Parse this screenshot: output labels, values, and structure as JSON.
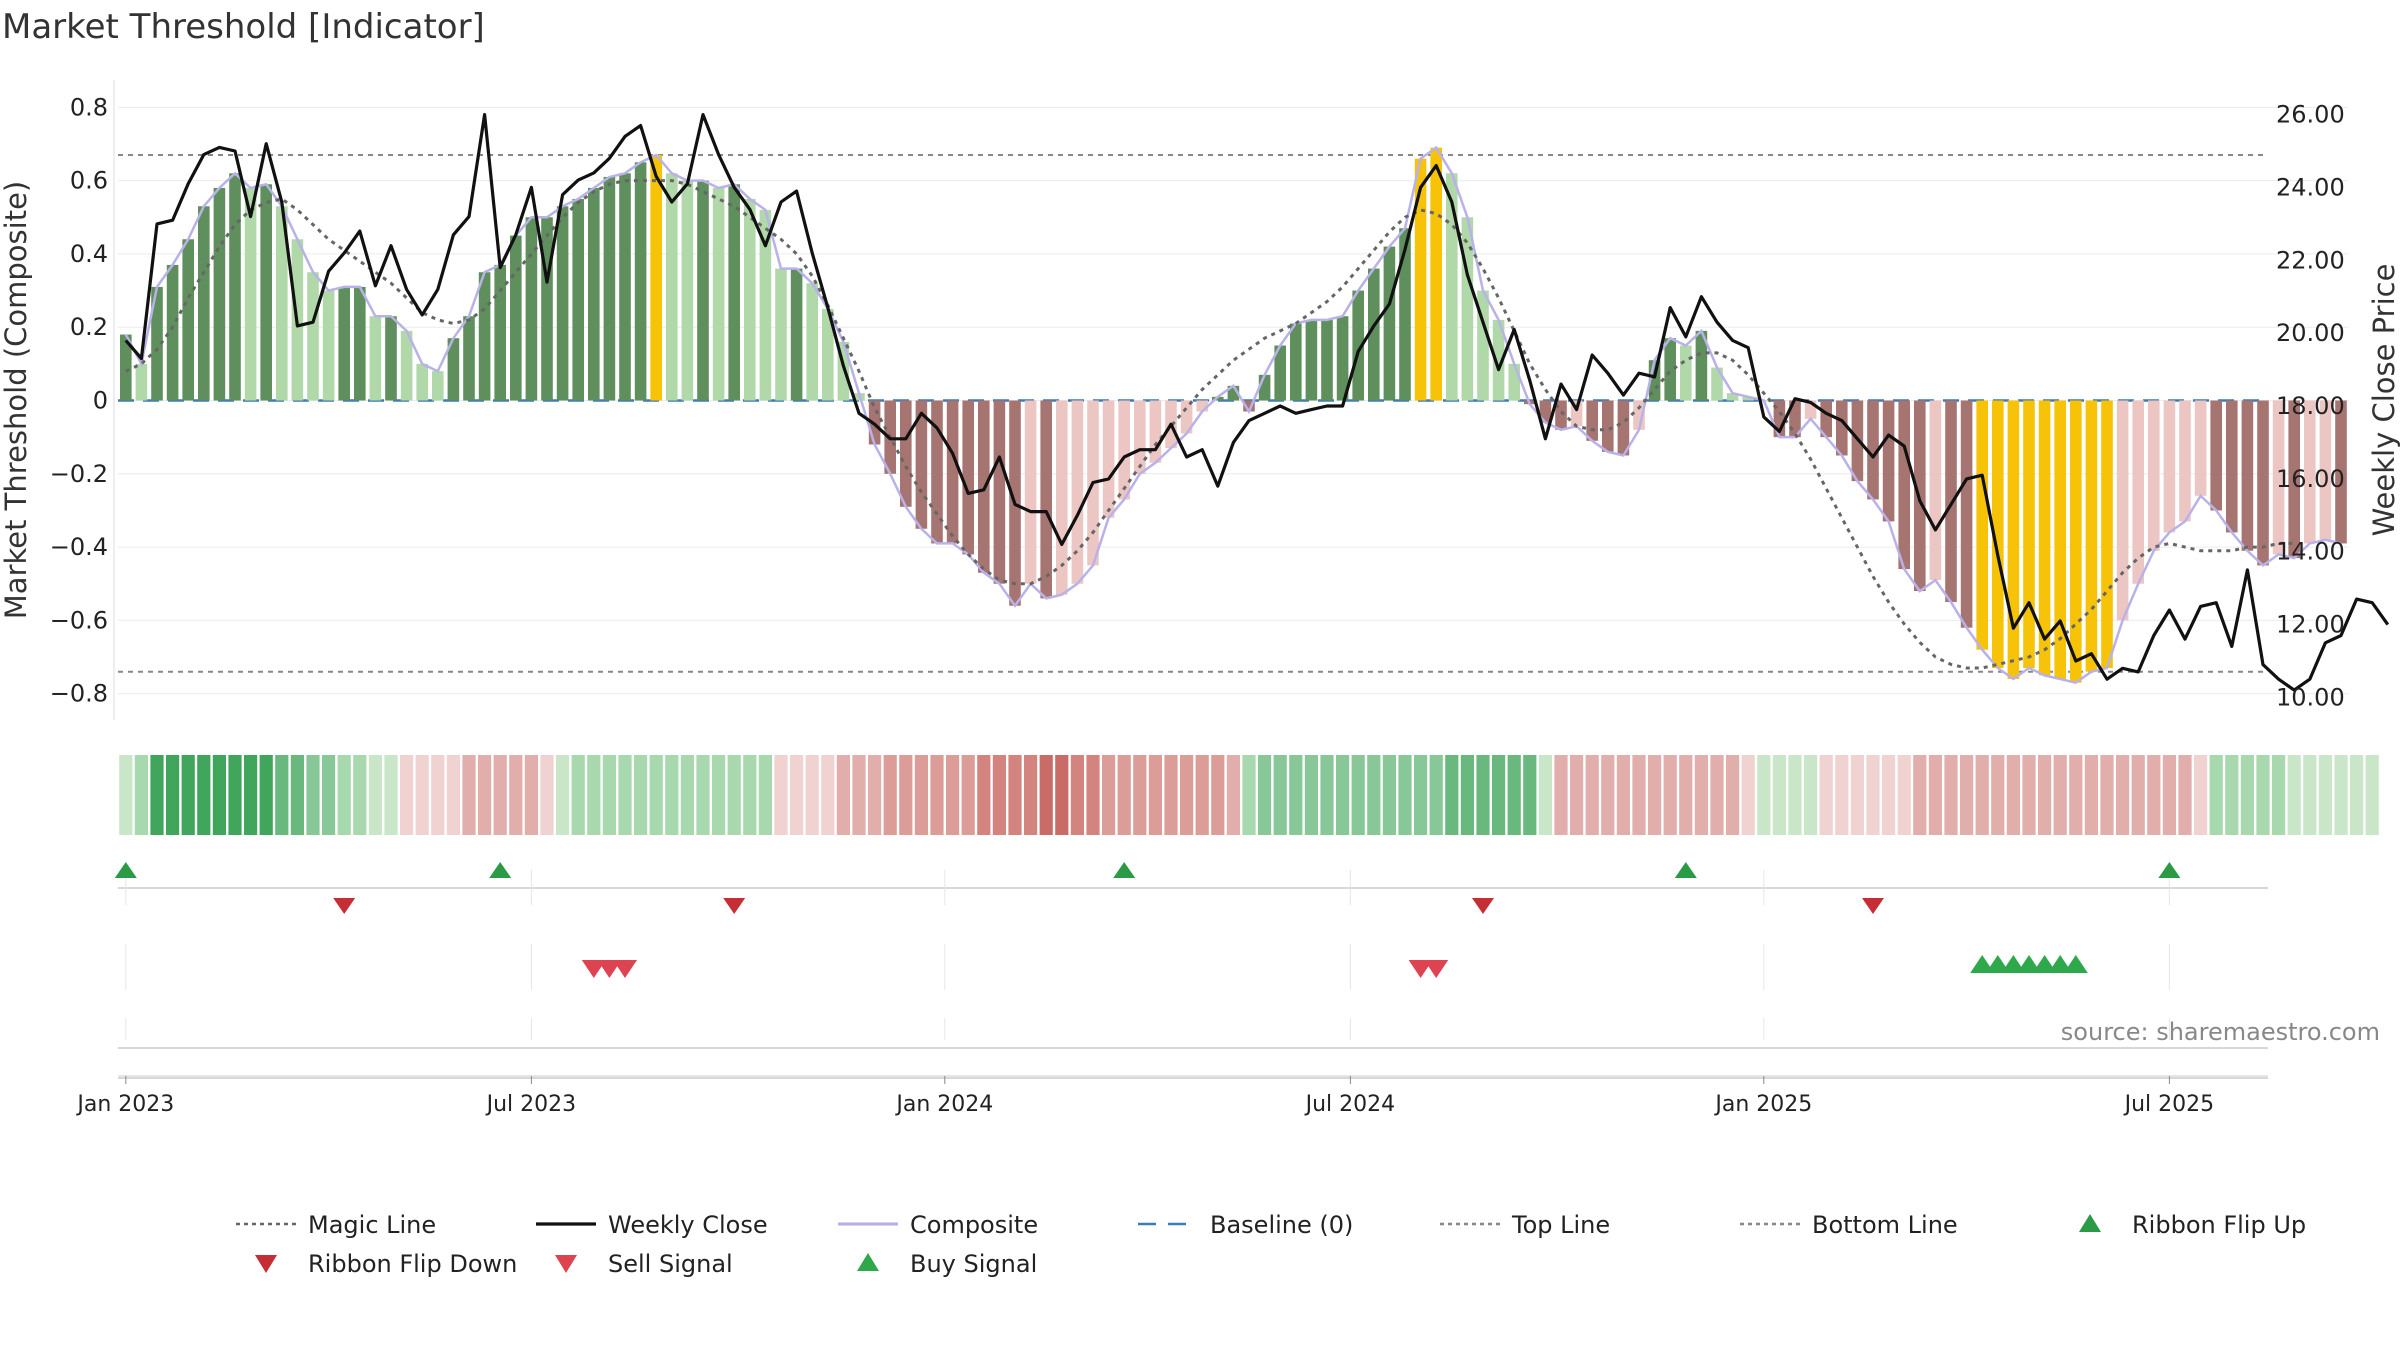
{
  "chart_data": {
    "type": "bar",
    "title": "Market Threshold [Indicator]",
    "ylabel_left": "Market Threshold (Composite)",
    "ylabel_right": "Weekly Close Price",
    "ylim_left": [
      -0.85,
      0.82
    ],
    "ylim_right": [
      9.6,
      26.4
    ],
    "yticks_left": [
      {
        "value": 0.8,
        "label": "0.8"
      },
      {
        "value": 0.6,
        "label": "0.6"
      },
      {
        "value": 0.4,
        "label": "0.4"
      },
      {
        "value": 0.2,
        "label": "0.2"
      },
      {
        "value": 0.0,
        "label": "0"
      },
      {
        "value": -0.2,
        "label": "−0.2"
      },
      {
        "value": -0.4,
        "label": "−0.4"
      },
      {
        "value": -0.6,
        "label": "−0.6"
      },
      {
        "value": -0.8,
        "label": "−0.8"
      }
    ],
    "yticks_right": [
      {
        "value": 26,
        "label": "26.00"
      },
      {
        "value": 24,
        "label": "24.00"
      },
      {
        "value": 22,
        "label": "22.00"
      },
      {
        "value": 20,
        "label": "20.00"
      },
      {
        "value": 18,
        "label": "18.00"
      },
      {
        "value": 16,
        "label": "16.00"
      },
      {
        "value": 14,
        "label": "14.00"
      },
      {
        "value": 12,
        "label": "12.00"
      },
      {
        "value": 10,
        "label": "10.00"
      }
    ],
    "xticks": [
      {
        "week": 1,
        "label": "Jan 2023"
      },
      {
        "week": 27,
        "label": "Jul 2023"
      },
      {
        "week": 53.5,
        "label": "Jan 2024"
      },
      {
        "week": 79.5,
        "label": "Jul 2024"
      },
      {
        "week": 106,
        "label": "Jan 2025"
      },
      {
        "week": 132,
        "label": "Jul 2025"
      }
    ],
    "top_line": 0.67,
    "bottom_line": -0.74,
    "baseline": 0,
    "composite": [
      0.18,
      0.1,
      0.31,
      0.37,
      0.44,
      0.53,
      0.58,
      0.62,
      0.58,
      0.59,
      0.53,
      0.44,
      0.35,
      0.3,
      0.31,
      0.31,
      0.23,
      0.23,
      0.19,
      0.1,
      0.08,
      0.17,
      0.23,
      0.35,
      0.37,
      0.45,
      0.5,
      0.5,
      0.53,
      0.55,
      0.58,
      0.61,
      0.62,
      0.65,
      0.67,
      0.62,
      0.6,
      0.6,
      0.58,
      0.59,
      0.55,
      0.52,
      0.36,
      0.36,
      0.32,
      0.25,
      0.16,
      0.02,
      -0.12,
      -0.2,
      -0.29,
      -0.35,
      -0.39,
      -0.39,
      -0.42,
      -0.47,
      -0.5,
      -0.56,
      -0.5,
      -0.54,
      -0.53,
      -0.5,
      -0.45,
      -0.32,
      -0.27,
      -0.2,
      -0.17,
      -0.13,
      -0.09,
      -0.03,
      0.01,
      0.04,
      -0.03,
      0.07,
      0.15,
      0.21,
      0.22,
      0.22,
      0.23,
      0.3,
      0.36,
      0.42,
      0.47,
      0.66,
      0.69,
      0.62,
      0.5,
      0.3,
      0.22,
      0.1,
      -0.01,
      -0.06,
      -0.08,
      -0.07,
      -0.11,
      -0.14,
      -0.15,
      -0.08,
      0.11,
      0.17,
      0.15,
      0.19,
      0.09,
      0.02,
      0.01,
      0.0,
      -0.1,
      -0.1,
      -0.05,
      -0.1,
      -0.15,
      -0.22,
      -0.27,
      -0.33,
      -0.46,
      -0.52,
      -0.49,
      -0.55,
      -0.62,
      -0.68,
      -0.73,
      -0.76,
      -0.73,
      -0.75,
      -0.76,
      -0.77,
      -0.74,
      -0.73,
      -0.6,
      -0.5,
      -0.41,
      -0.36,
      -0.33,
      -0.26,
      -0.3,
      -0.36,
      -0.41,
      -0.45,
      -0.42,
      -0.43,
      -0.39,
      -0.38,
      -0.39
    ],
    "weekly_close": [
      19.8,
      19.3,
      23.0,
      23.1,
      24.1,
      24.9,
      25.1,
      25.0,
      23.2,
      25.2,
      23.6,
      20.2,
      20.3,
      21.7,
      22.2,
      22.8,
      21.3,
      22.4,
      21.2,
      20.5,
      21.2,
      22.7,
      23.2,
      26.0,
      21.8,
      22.7,
      24.0,
      21.4,
      23.8,
      24.2,
      24.4,
      24.8,
      25.4,
      25.7,
      24.3,
      23.6,
      24.1,
      26.0,
      24.9,
      24.0,
      23.4,
      22.4,
      23.6,
      23.9,
      22.2,
      20.7,
      19.1,
      17.8,
      17.5,
      17.1,
      17.1,
      17.8,
      17.4,
      16.7,
      15.6,
      15.7,
      16.6,
      15.3,
      15.1,
      15.1,
      14.2,
      15.0,
      15.9,
      16.0,
      16.6,
      16.8,
      16.8,
      17.5,
      16.6,
      16.8,
      15.8,
      17.0,
      17.6,
      17.8,
      18.0,
      17.8,
      17.9,
      18.0,
      18.0,
      19.5,
      20.2,
      20.8,
      22.3,
      24.0,
      24.6,
      23.6,
      21.6,
      20.3,
      19.0,
      20.1,
      18.7,
      17.1,
      18.6,
      17.9,
      19.4,
      18.9,
      18.3,
      18.9,
      18.8,
      20.7,
      19.9,
      21.0,
      20.3,
      19.8,
      19.6,
      17.7,
      17.3,
      18.2,
      18.1,
      17.8,
      17.6,
      17.1,
      16.6,
      17.2,
      16.9,
      15.4,
      14.6,
      15.3,
      16.0,
      16.1,
      13.9,
      11.9,
      12.6,
      11.6,
      12.1,
      11.0,
      11.2,
      10.5,
      10.8,
      10.7,
      11.7,
      12.4,
      11.6,
      12.5,
      12.6,
      11.4,
      13.5,
      10.9,
      10.5,
      10.2,
      10.5,
      11.5,
      11.7,
      12.7,
      12.6,
      12.0
    ],
    "magic_line": [
      0.08,
      0.1,
      0.14,
      0.2,
      0.28,
      0.35,
      0.42,
      0.48,
      0.52,
      0.54,
      0.55,
      0.52,
      0.48,
      0.44,
      0.41,
      0.38,
      0.35,
      0.32,
      0.28,
      0.24,
      0.22,
      0.21,
      0.22,
      0.25,
      0.3,
      0.35,
      0.4,
      0.45,
      0.5,
      0.54,
      0.57,
      0.59,
      0.6,
      0.6,
      0.6,
      0.6,
      0.59,
      0.57,
      0.55,
      0.53,
      0.5,
      0.47,
      0.44,
      0.4,
      0.34,
      0.26,
      0.17,
      0.08,
      -0.02,
      -0.1,
      -0.18,
      -0.25,
      -0.31,
      -0.37,
      -0.42,
      -0.46,
      -0.49,
      -0.5,
      -0.5,
      -0.48,
      -0.45,
      -0.41,
      -0.36,
      -0.3,
      -0.24,
      -0.18,
      -0.12,
      -0.07,
      -0.02,
      0.03,
      0.07,
      0.11,
      0.14,
      0.17,
      0.19,
      0.21,
      0.24,
      0.27,
      0.31,
      0.36,
      0.41,
      0.46,
      0.5,
      0.52,
      0.51,
      0.48,
      0.43,
      0.36,
      0.28,
      0.19,
      0.1,
      0.03,
      -0.03,
      -0.07,
      -0.08,
      -0.08,
      -0.06,
      -0.02,
      0.03,
      0.08,
      0.11,
      0.13,
      0.13,
      0.11,
      0.07,
      0.02,
      -0.03,
      -0.09,
      -0.16,
      -0.24,
      -0.32,
      -0.4,
      -0.48,
      -0.55,
      -0.61,
      -0.66,
      -0.7,
      -0.72,
      -0.73,
      -0.73,
      -0.72,
      -0.71,
      -0.7,
      -0.68,
      -0.65,
      -0.61,
      -0.57,
      -0.52,
      -0.47,
      -0.43,
      -0.4,
      -0.39,
      -0.4,
      -0.41,
      -0.41,
      -0.41,
      -0.4,
      -0.4,
      -0.39,
      -0.39
    ],
    "ribbon_shades": [
      "g1",
      "g2",
      "g5",
      "g5",
      "g5",
      "g5",
      "g5",
      "g5",
      "g5",
      "g5",
      "g4",
      "g4",
      "g3",
      "g3",
      "g2",
      "g2",
      "g1",
      "g1",
      "r1",
      "r1",
      "r1",
      "r1",
      "r2",
      "r2",
      "r2",
      "r2",
      "r2",
      "r1",
      "g1",
      "g2",
      "g2",
      "g2",
      "g2",
      "g2",
      "g2",
      "g2",
      "g2",
      "g2",
      "g2",
      "g2",
      "g2",
      "g2",
      "r1",
      "r1",
      "r1",
      "r1",
      "r2",
      "r2",
      "r2",
      "r3",
      "r3",
      "r3",
      "r3",
      "r3",
      "r3",
      "r4",
      "r4",
      "r4",
      "r4",
      "r5",
      "r5",
      "r4",
      "r4",
      "r3",
      "r3",
      "r3",
      "r3",
      "r3",
      "r3",
      "r3",
      "r3",
      "r2",
      "g2",
      "g3",
      "g3",
      "g3",
      "g3",
      "g3",
      "g3",
      "g3",
      "g3",
      "g3",
      "g3",
      "g3",
      "g3",
      "g4",
      "g4",
      "g4",
      "g4",
      "g4",
      "g4",
      "g1",
      "r2",
      "r2",
      "r2",
      "r2",
      "r2",
      "r2",
      "r2",
      "r2",
      "r2",
      "r2",
      "r2",
      "r2",
      "r1",
      "g1",
      "g1",
      "g1",
      "g1",
      "r1",
      "r1",
      "r1",
      "r1",
      "r1",
      "r1",
      "r2",
      "r2",
      "r2",
      "r2",
      "r2",
      "r2",
      "r2",
      "r2",
      "r2",
      "r2",
      "r2",
      "r2",
      "r2",
      "r2",
      "r2",
      "r2",
      "r2",
      "r2",
      "r1",
      "g2",
      "g2",
      "g2",
      "g2",
      "g2",
      "g1",
      "g1",
      "g1",
      "g1",
      "g1",
      "g1"
    ],
    "ribbon_flip_up_weeks": [
      1,
      25,
      65,
      101,
      132
    ],
    "ribbon_flip_down_weeks": [
      15,
      40,
      88,
      113
    ],
    "sell_signal_weeks": [
      31,
      32,
      33,
      84,
      85
    ],
    "buy_signal_weeks": [
      120,
      121,
      122,
      123,
      124,
      125,
      126
    ],
    "legend": [
      {
        "label": "Magic Line",
        "style": "dotted",
        "color": "#666666"
      },
      {
        "label": "Weekly Close",
        "style": "line",
        "color": "#111111"
      },
      {
        "label": "Composite",
        "style": "line",
        "color": "#b9b2e8"
      },
      {
        "label": "Baseline (0)",
        "style": "dashed",
        "color": "#3b7bb8"
      },
      {
        "label": "Top Line",
        "style": "dotted",
        "color": "#888888"
      },
      {
        "label": "Bottom Line",
        "style": "dotted",
        "color": "#888888"
      },
      {
        "label": "Ribbon Flip Up",
        "style": "tri-up",
        "color": "#2a9a45"
      },
      {
        "label": "Ribbon Flip Down",
        "style": "tri-down",
        "color": "#c62e35"
      },
      {
        "label": "Sell Signal",
        "style": "tri-down",
        "color": "#de4352"
      },
      {
        "label": "Buy Signal",
        "style": "tri-up",
        "color": "#2ea84a"
      }
    ],
    "source": "source: sharemaestro.com"
  },
  "colors": {
    "pos_dark": "#5e8f5c",
    "pos_light": "#b0d8a8",
    "neg_dark": "#a77571",
    "neg_light": "#ecc6c3",
    "extreme": "#f7c308",
    "composite_line": "#b9b2e8",
    "close_line": "#111111",
    "magic_line": "#666666",
    "baseline": "#3b7bb8",
    "ribbon": {
      "g1": "#c9e6c9",
      "g2": "#a8d8ae",
      "g3": "#88c898",
      "g4": "#69b97f",
      "g5": "#3fa65c",
      "r1": "#f0d2d0",
      "r2": "#e2aeab",
      "r3": "#dc9c98",
      "r4": "#d4847f",
      "r5": "#c96c67"
    }
  }
}
